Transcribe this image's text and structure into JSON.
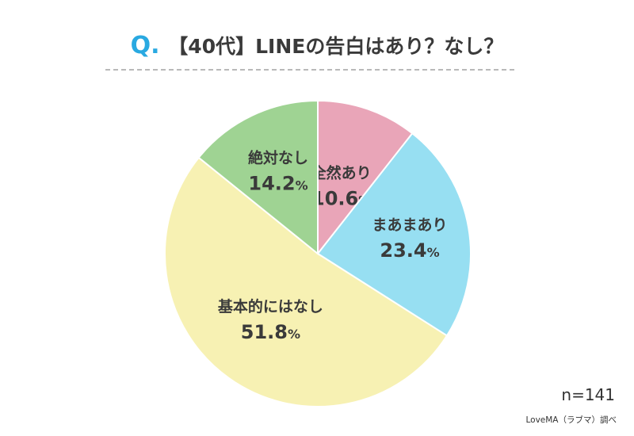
{
  "title": {
    "q_label": "Q",
    "q_dot": ".",
    "text": "【40代】LINEの告白はあり？なし？"
  },
  "sample_size": "n=141",
  "source": "LoveMA（ラブマ）調べ",
  "chart_data": {
    "type": "pie",
    "start_angle_deg": 0,
    "direction": "clockwise",
    "slices": [
      {
        "label": "全然あり",
        "value": 10.6,
        "display": "10.6",
        "unit": "%",
        "color": "#e9a5b8"
      },
      {
        "label": "まあまあり",
        "value": 23.4,
        "display": "23.4",
        "unit": "%",
        "color": "#97dff2"
      },
      {
        "label": "基本的にはなし",
        "value": 51.8,
        "display": "51.8",
        "unit": "%",
        "color": "#f7f1b3"
      },
      {
        "label": "絶対なし",
        "value": 14.2,
        "display": "14.2",
        "unit": "%",
        "color": "#9fd393"
      }
    ]
  }
}
